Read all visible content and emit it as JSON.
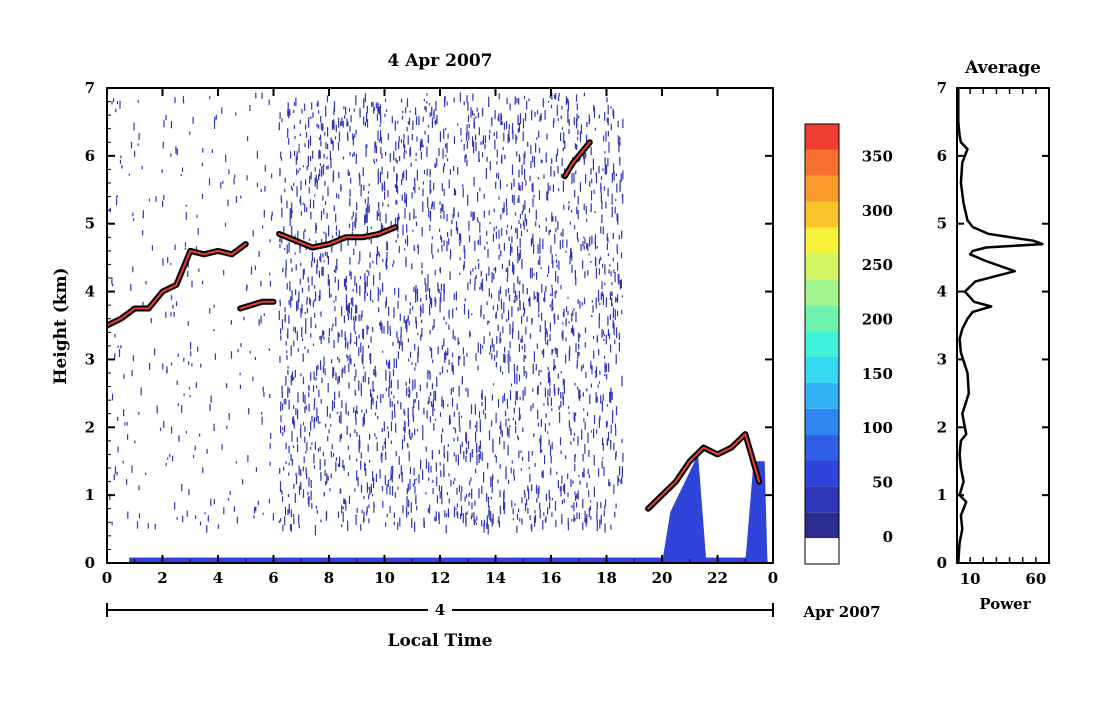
{
  "chart_data": [
    {
      "type": "heatmap",
      "title": "4 Apr 2007",
      "xlabel": "Local Time",
      "ylabel": "Height (km)",
      "xlim": [
        0,
        24
      ],
      "ylim": [
        0,
        7
      ],
      "x_ticks": [
        "0",
        "2",
        "4",
        "6",
        "8",
        "10",
        "12",
        "14",
        "16",
        "18",
        "20",
        "22",
        "0"
      ],
      "y_ticks": [
        "0",
        "1",
        "2",
        "3",
        "4",
        "5",
        "6",
        "7"
      ],
      "date_bar": {
        "day_label": "4",
        "month_label": "Apr 2007"
      },
      "colorbar": {
        "ticks": [
          "0",
          "50",
          "100",
          "150",
          "200",
          "250",
          "300",
          "350"
        ],
        "range": [
          -25,
          380
        ],
        "colors": [
          "#ffffff",
          "#2b2d8f",
          "#2e35b6",
          "#2f44d8",
          "#2f5fe6",
          "#2f86f0",
          "#32b2f5",
          "#34d8f3",
          "#3ef2dc",
          "#6ef2ae",
          "#a2f48e",
          "#d2f563",
          "#f6f23c",
          "#fbc42a",
          "#f99a2a",
          "#f6702e",
          "#ef3d32"
        ]
      },
      "features": [
        {
          "name": "cloud layer 1",
          "x": [
            0.0,
            0.5,
            1.0,
            1.5,
            2.0,
            2.5,
            3.0,
            3.5,
            4.0,
            4.5,
            5.0
          ],
          "y": [
            3.5,
            3.6,
            3.75,
            3.75,
            4.0,
            4.1,
            4.6,
            4.55,
            4.6,
            4.55,
            4.7
          ]
        },
        {
          "name": "cloud layer 2",
          "x": [
            4.8,
            5.2,
            5.6,
            6.0
          ],
          "y": [
            3.75,
            3.8,
            3.85,
            3.85
          ]
        },
        {
          "name": "cloud layer 3",
          "x": [
            6.2,
            6.8,
            7.4,
            8.0,
            8.6,
            9.2,
            9.8,
            10.4
          ],
          "y": [
            4.85,
            4.75,
            4.65,
            4.7,
            4.8,
            4.8,
            4.85,
            4.95
          ]
        },
        {
          "name": "cloud layer 4",
          "x": [
            16.5,
            16.8,
            17.1,
            17.4
          ],
          "y": [
            5.7,
            5.9,
            6.05,
            6.2
          ]
        },
        {
          "name": "low cloud",
          "x": [
            19.5,
            20.0,
            20.5,
            21.0,
            21.5,
            22.0,
            22.5,
            23.0,
            23.5
          ],
          "y": [
            0.8,
            1.0,
            1.2,
            1.5,
            1.7,
            1.6,
            1.7,
            1.9,
            1.2
          ]
        }
      ]
    },
    {
      "type": "line",
      "title": "Average",
      "xlabel": "Power",
      "ylabel": "",
      "xlim": [
        0,
        70
      ],
      "ylim": [
        0,
        7
      ],
      "x_ticks": [
        "10",
        "60"
      ],
      "y_ticks": [
        "0",
        "1",
        "2",
        "3",
        "4",
        "5",
        "6",
        "7"
      ],
      "series": [
        {
          "x": [
            1,
            2,
            4,
            3,
            7,
            2,
            5,
            3,
            2,
            3,
            7,
            4,
            9,
            8,
            3,
            2,
            4,
            8,
            12,
            26,
            13,
            6,
            14,
            44,
            22,
            10,
            12,
            22,
            65,
            58,
            24,
            12,
            8,
            5,
            3,
            4,
            8,
            3,
            2,
            1,
            1,
            1
          ],
          "y": [
            0.0,
            0.3,
            0.5,
            0.7,
            0.9,
            1.0,
            1.2,
            1.4,
            1.6,
            1.8,
            1.9,
            2.2,
            2.5,
            2.8,
            3.1,
            3.3,
            3.45,
            3.6,
            3.7,
            3.78,
            3.85,
            4.0,
            4.15,
            4.3,
            4.45,
            4.55,
            4.6,
            4.65,
            4.7,
            4.75,
            4.85,
            4.95,
            5.05,
            5.3,
            5.6,
            5.9,
            6.1,
            6.2,
            6.3,
            6.5,
            6.8,
            7.0
          ]
        }
      ]
    }
  ]
}
